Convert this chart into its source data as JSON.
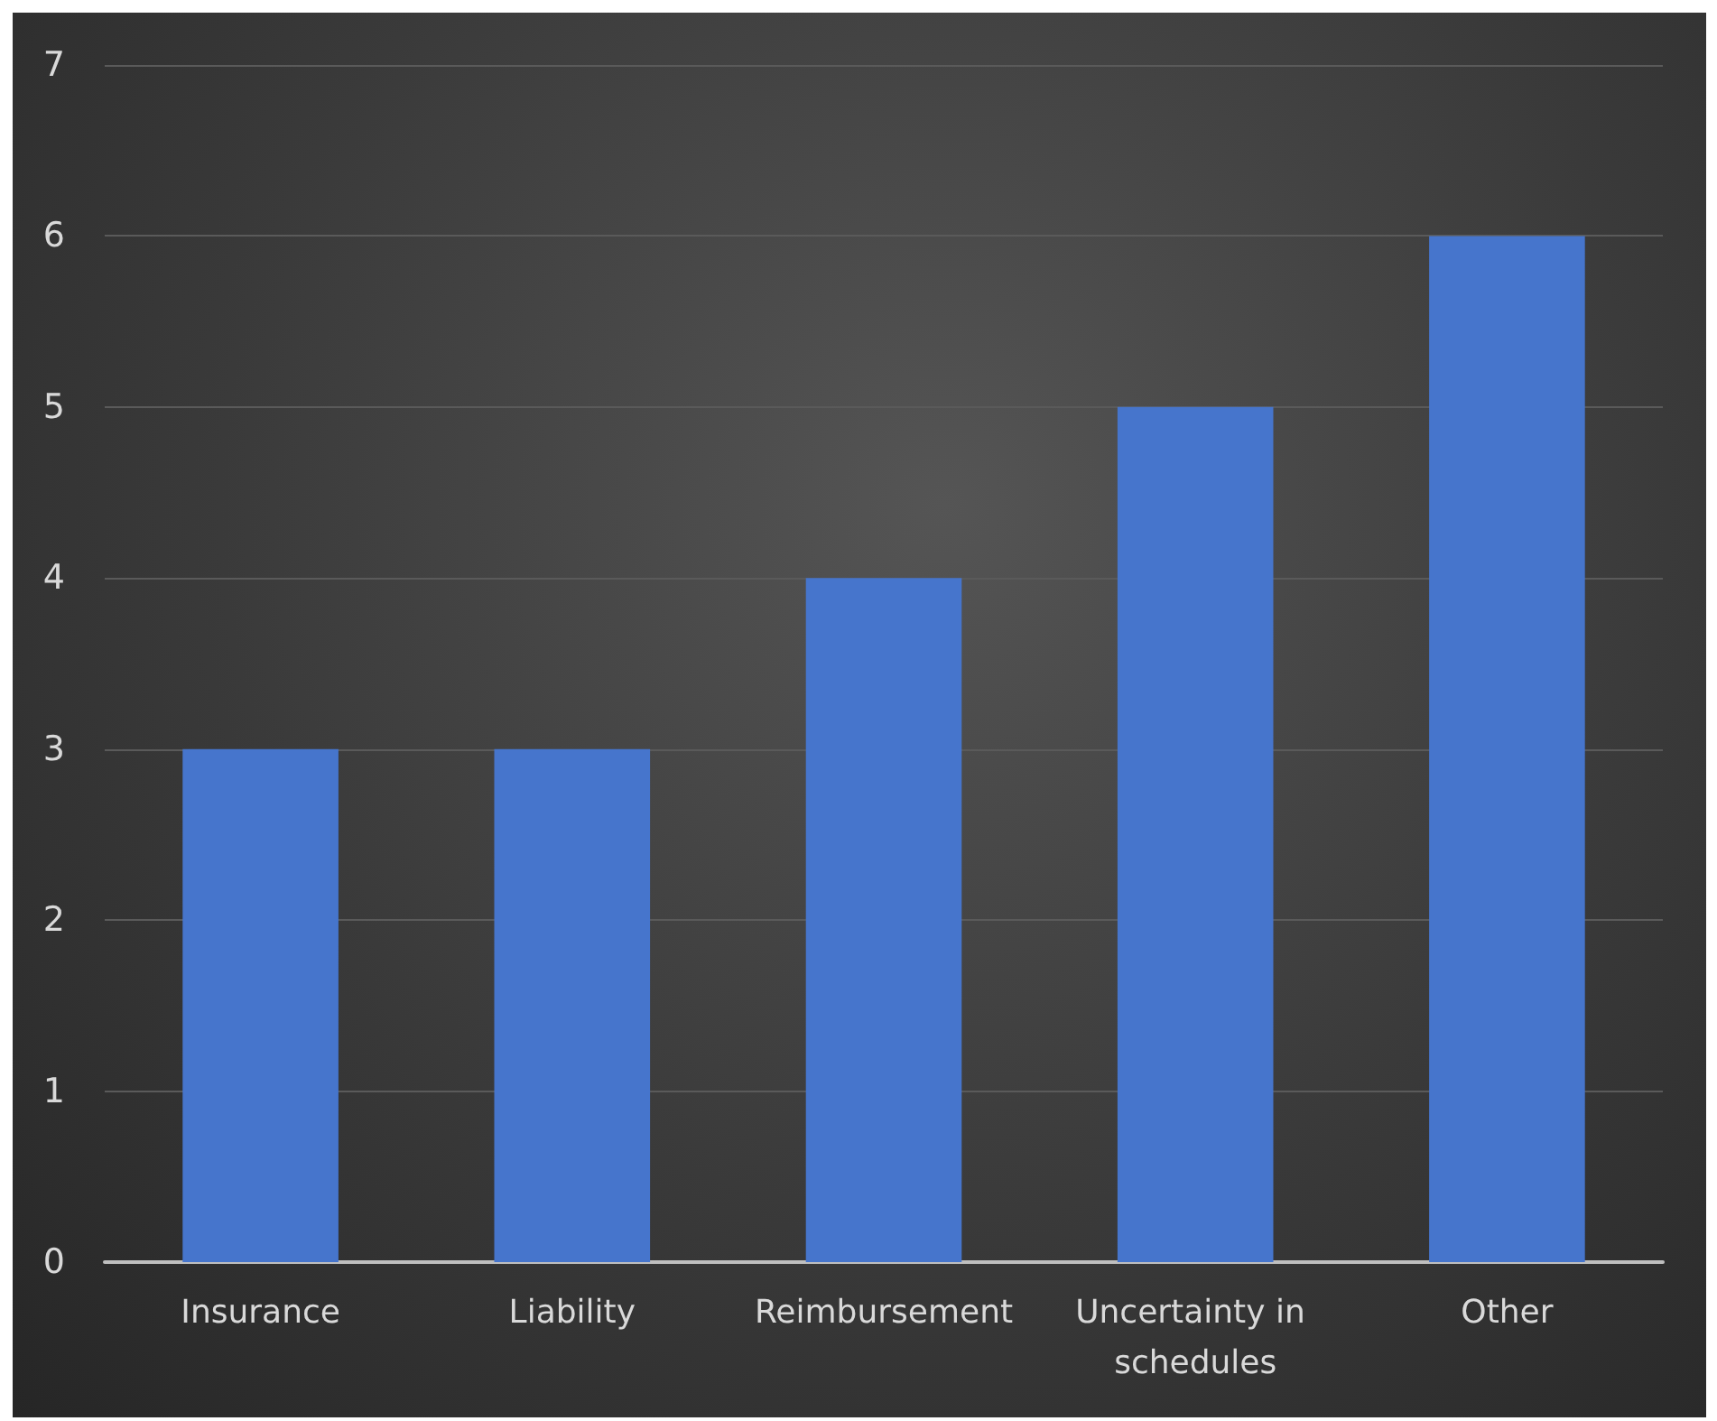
{
  "chart_data": {
    "type": "bar",
    "categories": [
      "Insurance",
      "Liability",
      "Reimbursement",
      "Uncertainty in schedules",
      "Other"
    ],
    "values": [
      3,
      3,
      4,
      5,
      6
    ],
    "color": "#4675cc",
    "ylim": [
      0,
      7
    ],
    "yticks": [
      0,
      1,
      2,
      3,
      4,
      5,
      6,
      7
    ],
    "grid": "y"
  }
}
